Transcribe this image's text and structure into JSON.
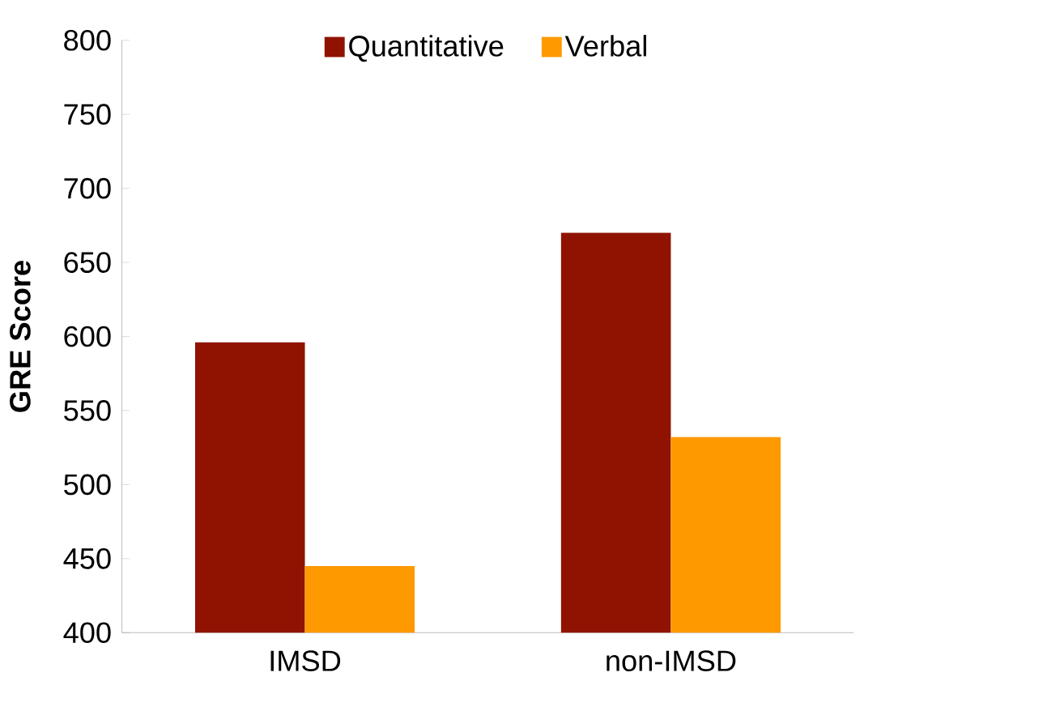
{
  "chart_data": {
    "type": "bar",
    "ylabel": "GRE Score",
    "categories": [
      "IMSD",
      "non-IMSD"
    ],
    "series": [
      {
        "name": "Quantitative",
        "color": "#8f1300",
        "values": [
          596,
          670
        ]
      },
      {
        "name": "Verbal",
        "color": "#ff9900",
        "values": [
          445,
          532
        ]
      }
    ],
    "ylim": [
      400,
      800
    ],
    "yticks": [
      400,
      450,
      500,
      550,
      600,
      650,
      700,
      750,
      800
    ],
    "grid": false,
    "legend": "top"
  }
}
